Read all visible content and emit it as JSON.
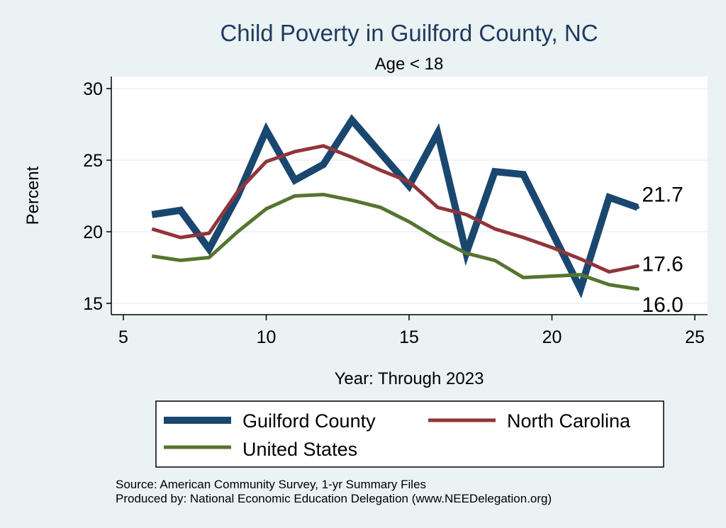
{
  "chart_data": {
    "type": "line",
    "title": "Child Poverty in Guilford County, NC",
    "subtitle": "Age < 18",
    "xlabel": "Year: Through 2023",
    "ylabel": "Percent",
    "xlim": [
      5,
      25
    ],
    "ylim": [
      15,
      30
    ],
    "xticks": [
      5,
      10,
      15,
      20,
      25
    ],
    "yticks": [
      15,
      20,
      25,
      30
    ],
    "grid": true,
    "legend_position": "bottom",
    "series": [
      {
        "name": "Guilford County",
        "color": "#1a476f",
        "width": "thick",
        "x": [
          6,
          7,
          8,
          9,
          10,
          11,
          12,
          13,
          14,
          15,
          16,
          17,
          18,
          19,
          20,
          21,
          22,
          23
        ],
        "y": [
          21.2,
          21.5,
          18.8,
          22.5,
          27.1,
          23.6,
          24.7,
          27.8,
          25.5,
          23.2,
          26.9,
          18.5,
          24.2,
          24.0,
          20.0,
          16.0,
          22.4,
          21.7
        ],
        "end_label": "21.7"
      },
      {
        "name": "North Carolina",
        "color": "#90353b",
        "width": "medium",
        "x": [
          6,
          7,
          8,
          9,
          10,
          11,
          12,
          13,
          14,
          15,
          16,
          17,
          18,
          19,
          20,
          21,
          22,
          23
        ],
        "y": [
          20.2,
          19.6,
          19.9,
          22.8,
          24.9,
          25.6,
          26.0,
          25.2,
          24.3,
          23.5,
          21.7,
          21.2,
          20.2,
          19.6,
          18.9,
          18.1,
          17.2,
          17.6
        ],
        "end_label": "17.6"
      },
      {
        "name": "United States",
        "color": "#55752f",
        "width": "medium",
        "x": [
          6,
          7,
          8,
          9,
          10,
          11,
          12,
          13,
          14,
          15,
          16,
          17,
          18,
          19,
          20,
          21,
          22,
          23
        ],
        "y": [
          18.3,
          18.0,
          18.2,
          20.0,
          21.6,
          22.5,
          22.6,
          22.2,
          21.7,
          20.7,
          19.5,
          18.5,
          18.0,
          16.8,
          16.9,
          17.0,
          16.3,
          16.0
        ],
        "end_label": "16.0"
      }
    ]
  },
  "footer": {
    "source": "Source: American Community Survey, 1-yr Summary Files",
    "produced_by": "Produced by: National Economic Education Delegation (www.NEEDelegation.org)"
  }
}
